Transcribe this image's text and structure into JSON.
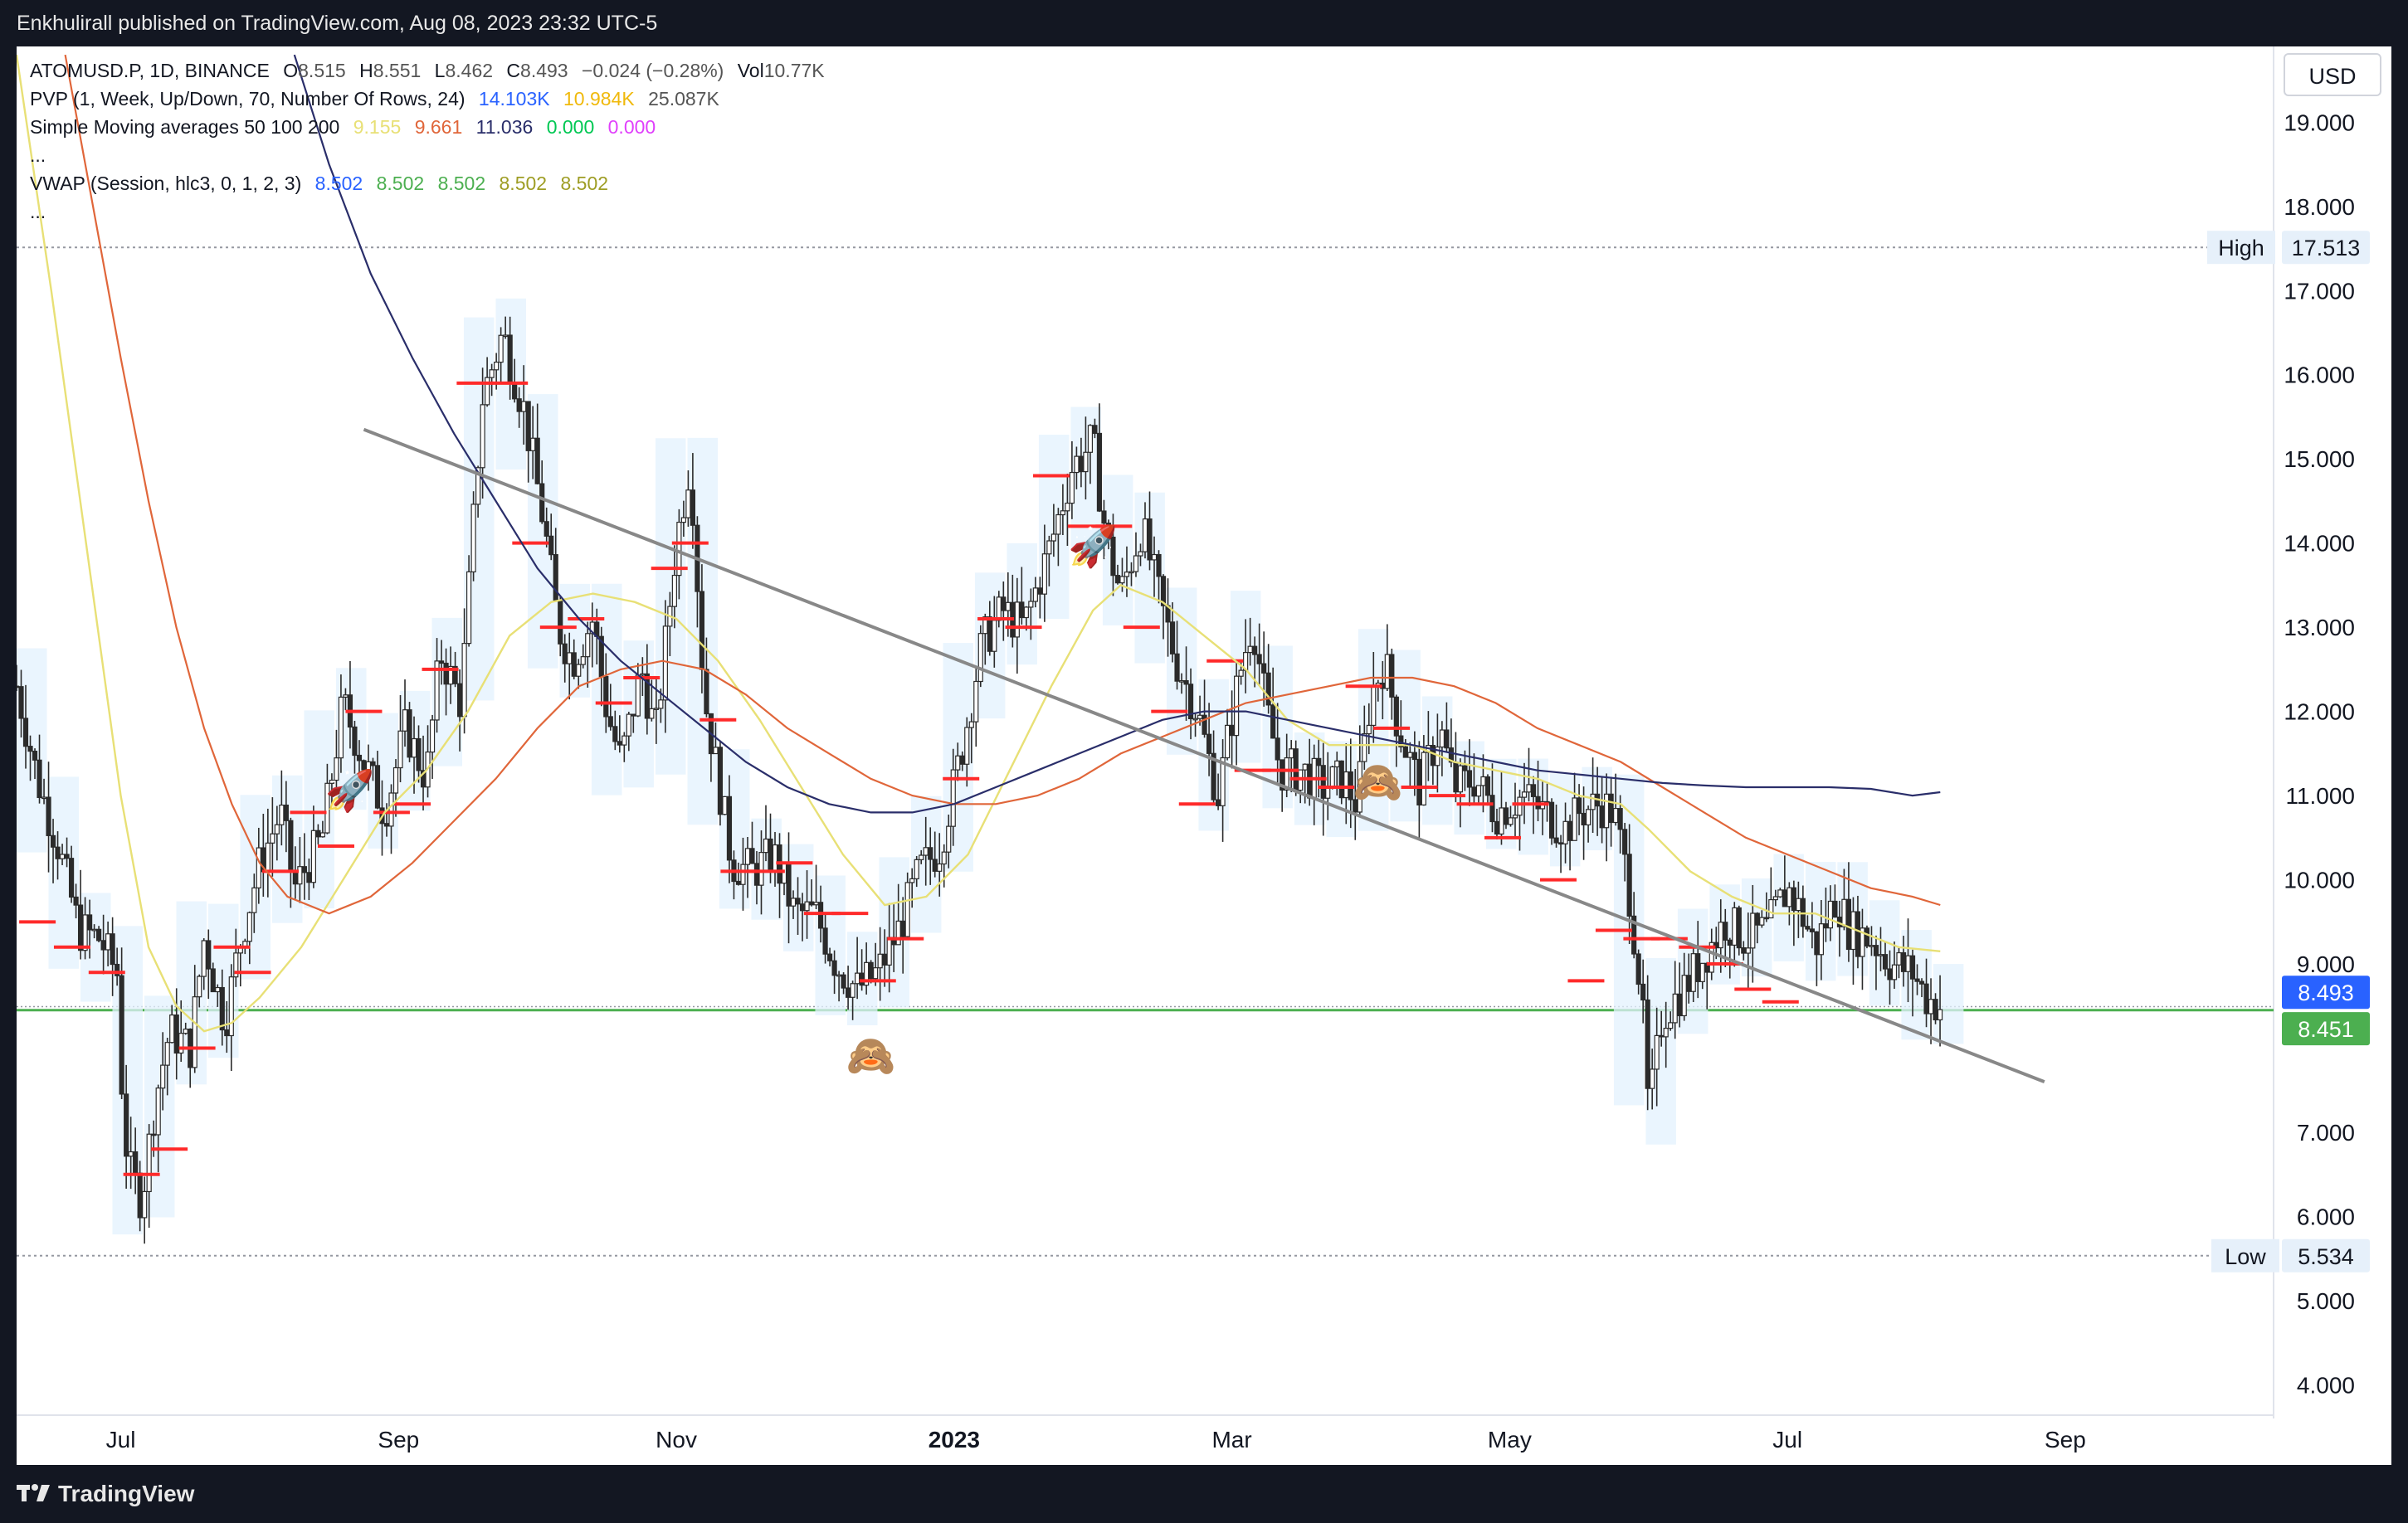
{
  "header": {
    "publish_text": "Enkhulirall published on TradingView.com, Aug 08, 2023 23:32 UTC-5"
  },
  "footer": {
    "brand": "TradingView"
  },
  "currency": "USD",
  "legend": {
    "symbol_line": {
      "symbol": "ATOMUSD.P, 1D, BINANCE",
      "o_label": "O",
      "o": "8.515",
      "h_label": "H",
      "h": "8.551",
      "l_label": "L",
      "l": "8.462",
      "c_label": "C",
      "c": "8.493",
      "change": "−0.024 (−0.28%)",
      "vol_label": "Vol",
      "vol": "10.77K"
    },
    "pvp": {
      "name": "PVP (1, Week, Up/Down, 70, Number Of Rows, 24)",
      "v1": "14.103K",
      "v2": "10.984K",
      "v3": "25.087K"
    },
    "sma": {
      "name": "Simple Moving averages 50 100 200",
      "v1": "9.155",
      "v2": "9.661",
      "v3": "11.036",
      "v4": "0.000",
      "v5": "0.000"
    },
    "ellipsis1": "...",
    "vwap": {
      "name": "VWAP (Session, hlc3, 0, 1, 2, 3)",
      "v1": "8.502",
      "v2": "8.502",
      "v3": "8.502",
      "v4": "8.502",
      "v5": "8.502"
    },
    "ellipsis2": "..."
  },
  "colors": {
    "up": "#26a69a",
    "sma50": "#e8e076",
    "sma100": "#e0663a",
    "sma200": "#2a2e6a",
    "poc": "#ff2a2a",
    "trendline": "#888888",
    "support": "#4caf50",
    "vwap_blue": "#2962ff",
    "pvp_yellow": "#f0b90b",
    "sma_green": "#00c853",
    "sma_magenta": "#e040fb"
  },
  "chart_data": {
    "type": "candlestick",
    "symbol": "ATOMUSD.P",
    "timeframe": "1D",
    "ylim": [
      3.6,
      19.9
    ],
    "y_ticks": [
      "19.000",
      "18.000",
      "17.000",
      "16.000",
      "15.000",
      "14.000",
      "13.000",
      "12.000",
      "11.000",
      "10.000",
      "9.000",
      "7.000",
      "6.000",
      "5.000",
      "4.000"
    ],
    "x_ticks": [
      "Jul",
      "Sep",
      "Nov",
      "2023",
      "Mar",
      "May",
      "Jul",
      "Sep"
    ],
    "x_tick_months": [
      0,
      2,
      4,
      6,
      8,
      10,
      12,
      14
    ],
    "x_range_months": [
      -0.75,
      15.5
    ],
    "high": {
      "label": "High",
      "value": 17.513,
      "text": "17.513"
    },
    "low": {
      "label": "Low",
      "value": 5.534,
      "text": "5.534"
    },
    "last_price": {
      "value": 8.493,
      "text": "8.493"
    },
    "support": {
      "value": 8.451,
      "text": "8.451"
    },
    "trendline": {
      "from": [
        1.75,
        15.35
      ],
      "to": [
        13.85,
        7.6
      ]
    },
    "price_path": [
      [
        -0.75,
        12.3
      ],
      [
        -0.6,
        11.2
      ],
      [
        -0.45,
        10.4
      ],
      [
        -0.3,
        9.4
      ],
      [
        -0.15,
        9.3
      ],
      [
        0.0,
        8.8
      ],
      [
        -0.05,
        8.9
      ],
      [
        0.05,
        6.6
      ],
      [
        0.15,
        6.2
      ],
      [
        0.25,
        7.4
      ],
      [
        0.35,
        8.2
      ],
      [
        0.5,
        8.0
      ],
      [
        0.6,
        9.3
      ],
      [
        0.75,
        8.3
      ],
      [
        0.85,
        9.2
      ],
      [
        1.0,
        10.2
      ],
      [
        1.15,
        10.8
      ],
      [
        1.25,
        9.9
      ],
      [
        1.45,
        10.5
      ],
      [
        1.6,
        12.1
      ],
      [
        1.75,
        11.4
      ],
      [
        1.9,
        10.8
      ],
      [
        2.05,
        11.8
      ],
      [
        2.2,
        11.2
      ],
      [
        2.3,
        12.7
      ],
      [
        2.45,
        12.1
      ],
      [
        2.6,
        15.7
      ],
      [
        2.75,
        16.5
      ],
      [
        2.9,
        15.6
      ],
      [
        3.05,
        14.2
      ],
      [
        3.15,
        13.0
      ],
      [
        3.25,
        12.6
      ],
      [
        3.4,
        13.1
      ],
      [
        3.5,
        12.0
      ],
      [
        3.6,
        11.4
      ],
      [
        3.75,
        12.5
      ],
      [
        3.85,
        11.7
      ],
      [
        4.0,
        14.0
      ],
      [
        4.1,
        15.0
      ],
      [
        4.2,
        12.2
      ],
      [
        4.3,
        11.2
      ],
      [
        4.4,
        10.2
      ],
      [
        4.55,
        10.1
      ],
      [
        4.7,
        10.3
      ],
      [
        4.85,
        9.6
      ],
      [
        5.0,
        9.6
      ],
      [
        5.15,
        9.0
      ],
      [
        5.3,
        8.7
      ],
      [
        5.45,
        8.9
      ],
      [
        5.6,
        9.4
      ],
      [
        5.75,
        10.1
      ],
      [
        5.9,
        10.4
      ],
      [
        6.05,
        11.5
      ],
      [
        6.2,
        12.8
      ],
      [
        6.35,
        13.2
      ],
      [
        6.5,
        13.0
      ],
      [
        6.7,
        14.0
      ],
      [
        6.85,
        14.9
      ],
      [
        7.0,
        15.2
      ],
      [
        7.1,
        14.0
      ],
      [
        7.2,
        13.4
      ],
      [
        7.35,
        14.2
      ],
      [
        7.5,
        13.2
      ],
      [
        7.6,
        12.6
      ],
      [
        7.75,
        12.0
      ],
      [
        7.9,
        11.0
      ],
      [
        8.05,
        12.4
      ],
      [
        8.15,
        13.1
      ],
      [
        8.25,
        12.0
      ],
      [
        8.35,
        11.3
      ],
      [
        8.5,
        11.3
      ],
      [
        8.65,
        11.1
      ],
      [
        8.8,
        11.2
      ],
      [
        8.9,
        10.9
      ],
      [
        9.0,
        12.2
      ],
      [
        9.1,
        12.6
      ],
      [
        9.2,
        11.8
      ],
      [
        9.35,
        11.1
      ],
      [
        9.5,
        11.8
      ],
      [
        9.6,
        11.1
      ],
      [
        9.75,
        11.2
      ],
      [
        9.9,
        10.8
      ],
      [
        10.1,
        11.0
      ],
      [
        10.25,
        10.8
      ],
      [
        10.4,
        10.6
      ],
      [
        10.5,
        10.8
      ],
      [
        10.65,
        10.9
      ],
      [
        10.75,
        10.8
      ],
      [
        10.85,
        10.0
      ],
      [
        10.95,
        8.6
      ],
      [
        11.0,
        7.2
      ],
      [
        11.1,
        8.4
      ],
      [
        11.25,
        8.7
      ],
      [
        11.4,
        9.1
      ],
      [
        11.55,
        9.5
      ],
      [
        11.7,
        9.3
      ],
      [
        11.85,
        9.4
      ],
      [
        12.0,
        9.9
      ],
      [
        12.1,
        9.6
      ],
      [
        12.2,
        9.2
      ],
      [
        12.35,
        9.8
      ],
      [
        12.45,
        9.4
      ],
      [
        12.6,
        9.3
      ],
      [
        12.75,
        9.0
      ],
      [
        12.9,
        8.9
      ],
      [
        13.0,
        8.6
      ],
      [
        13.1,
        8.5
      ]
    ],
    "sma50": [
      [
        -0.75,
        19.8
      ],
      [
        -0.5,
        17.0
      ],
      [
        -0.25,
        14.0
      ],
      [
        0.0,
        11.0
      ],
      [
        0.2,
        9.2
      ],
      [
        0.4,
        8.5
      ],
      [
        0.6,
        8.2
      ],
      [
        0.8,
        8.3
      ],
      [
        1.0,
        8.6
      ],
      [
        1.3,
        9.2
      ],
      [
        1.6,
        10.0
      ],
      [
        1.9,
        10.8
      ],
      [
        2.2,
        11.3
      ],
      [
        2.5,
        12.0
      ],
      [
        2.8,
        12.9
      ],
      [
        3.1,
        13.3
      ],
      [
        3.4,
        13.4
      ],
      [
        3.7,
        13.3
      ],
      [
        4.0,
        13.1
      ],
      [
        4.3,
        12.6
      ],
      [
        4.6,
        11.9
      ],
      [
        4.9,
        11.1
      ],
      [
        5.2,
        10.3
      ],
      [
        5.5,
        9.7
      ],
      [
        5.8,
        9.8
      ],
      [
        6.1,
        10.3
      ],
      [
        6.4,
        11.3
      ],
      [
        6.7,
        12.3
      ],
      [
        7.0,
        13.2
      ],
      [
        7.2,
        13.5
      ],
      [
        7.5,
        13.3
      ],
      [
        7.8,
        12.9
      ],
      [
        8.1,
        12.5
      ],
      [
        8.4,
        11.9
      ],
      [
        8.7,
        11.6
      ],
      [
        9.0,
        11.6
      ],
      [
        9.3,
        11.6
      ],
      [
        9.6,
        11.4
      ],
      [
        9.9,
        11.3
      ],
      [
        10.2,
        11.2
      ],
      [
        10.5,
        11.0
      ],
      [
        10.8,
        10.9
      ],
      [
        11.0,
        10.6
      ],
      [
        11.3,
        10.1
      ],
      [
        11.6,
        9.8
      ],
      [
        11.9,
        9.6
      ],
      [
        12.2,
        9.6
      ],
      [
        12.5,
        9.4
      ],
      [
        12.8,
        9.2
      ],
      [
        13.1,
        9.15
      ]
    ],
    "sma100": [
      [
        -0.4,
        19.8
      ],
      [
        -0.2,
        18.0
      ],
      [
        0.0,
        16.2
      ],
      [
        0.2,
        14.5
      ],
      [
        0.4,
        13.0
      ],
      [
        0.6,
        11.8
      ],
      [
        0.8,
        10.9
      ],
      [
        1.0,
        10.2
      ],
      [
        1.2,
        9.8
      ],
      [
        1.5,
        9.6
      ],
      [
        1.8,
        9.8
      ],
      [
        2.1,
        10.2
      ],
      [
        2.4,
        10.7
      ],
      [
        2.7,
        11.2
      ],
      [
        3.0,
        11.8
      ],
      [
        3.3,
        12.3
      ],
      [
        3.6,
        12.5
      ],
      [
        3.9,
        12.6
      ],
      [
        4.2,
        12.5
      ],
      [
        4.5,
        12.2
      ],
      [
        4.8,
        11.8
      ],
      [
        5.1,
        11.5
      ],
      [
        5.4,
        11.2
      ],
      [
        5.7,
        11.0
      ],
      [
        6.0,
        10.9
      ],
      [
        6.3,
        10.9
      ],
      [
        6.6,
        11.0
      ],
      [
        6.9,
        11.2
      ],
      [
        7.2,
        11.5
      ],
      [
        7.5,
        11.7
      ],
      [
        7.8,
        11.9
      ],
      [
        8.1,
        12.1
      ],
      [
        8.4,
        12.2
      ],
      [
        8.7,
        12.3
      ],
      [
        9.0,
        12.4
      ],
      [
        9.3,
        12.4
      ],
      [
        9.6,
        12.3
      ],
      [
        9.9,
        12.1
      ],
      [
        10.2,
        11.8
      ],
      [
        10.5,
        11.6
      ],
      [
        10.8,
        11.4
      ],
      [
        11.1,
        11.1
      ],
      [
        11.4,
        10.8
      ],
      [
        11.7,
        10.5
      ],
      [
        12.0,
        10.3
      ],
      [
        12.3,
        10.1
      ],
      [
        12.6,
        9.9
      ],
      [
        12.9,
        9.8
      ],
      [
        13.1,
        9.7
      ]
    ],
    "sma200": [
      [
        1.25,
        19.8
      ],
      [
        1.5,
        18.5
      ],
      [
        1.8,
        17.2
      ],
      [
        2.1,
        16.2
      ],
      [
        2.4,
        15.3
      ],
      [
        2.7,
        14.5
      ],
      [
        3.0,
        13.7
      ],
      [
        3.3,
        13.1
      ],
      [
        3.6,
        12.6
      ],
      [
        3.9,
        12.2
      ],
      [
        4.2,
        11.8
      ],
      [
        4.5,
        11.4
      ],
      [
        4.8,
        11.1
      ],
      [
        5.1,
        10.9
      ],
      [
        5.4,
        10.8
      ],
      [
        5.7,
        10.8
      ],
      [
        6.0,
        10.9
      ],
      [
        6.3,
        11.1
      ],
      [
        6.6,
        11.3
      ],
      [
        6.9,
        11.5
      ],
      [
        7.2,
        11.7
      ],
      [
        7.5,
        11.9
      ],
      [
        7.8,
        12.0
      ],
      [
        8.1,
        12.0
      ],
      [
        8.4,
        11.9
      ],
      [
        8.7,
        11.8
      ],
      [
        9.0,
        11.7
      ],
      [
        9.3,
        11.6
      ],
      [
        9.6,
        11.5
      ],
      [
        9.9,
        11.4
      ],
      [
        10.2,
        11.3
      ],
      [
        10.5,
        11.25
      ],
      [
        10.8,
        11.2
      ],
      [
        11.1,
        11.15
      ],
      [
        11.4,
        11.12
      ],
      [
        11.7,
        11.1
      ],
      [
        12.0,
        11.1
      ],
      [
        12.3,
        11.1
      ],
      [
        12.6,
        11.08
      ],
      [
        12.9,
        11.0
      ],
      [
        13.1,
        11.04
      ]
    ],
    "poc_levels": [
      [
        -0.6,
        9.5
      ],
      [
        -0.35,
        9.2
      ],
      [
        -0.1,
        8.9
      ],
      [
        0.15,
        6.5
      ],
      [
        0.35,
        6.8
      ],
      [
        0.55,
        8.0
      ],
      [
        0.8,
        9.2
      ],
      [
        0.95,
        8.9
      ],
      [
        1.15,
        10.1
      ],
      [
        1.35,
        10.8
      ],
      [
        1.55,
        10.4
      ],
      [
        1.75,
        12.0
      ],
      [
        1.95,
        10.8
      ],
      [
        2.1,
        10.9
      ],
      [
        2.3,
        12.5
      ],
      [
        2.55,
        15.9
      ],
      [
        2.8,
        15.9
      ],
      [
        2.95,
        14.0
      ],
      [
        3.15,
        13.0
      ],
      [
        3.35,
        13.1
      ],
      [
        3.55,
        12.1
      ],
      [
        3.75,
        12.4
      ],
      [
        3.95,
        13.7
      ],
      [
        4.1,
        14.0
      ],
      [
        4.3,
        11.9
      ],
      [
        4.45,
        10.1
      ],
      [
        4.65,
        10.1
      ],
      [
        4.85,
        10.2
      ],
      [
        5.05,
        9.6
      ],
      [
        5.25,
        9.6
      ],
      [
        5.45,
        8.8
      ],
      [
        5.65,
        9.3
      ],
      [
        6.05,
        11.2
      ],
      [
        6.3,
        13.1
      ],
      [
        6.5,
        13.0
      ],
      [
        6.7,
        14.8
      ],
      [
        6.95,
        14.2
      ],
      [
        7.15,
        14.2
      ],
      [
        7.35,
        13.0
      ],
      [
        7.55,
        12.0
      ],
      [
        7.75,
        10.9
      ],
      [
        7.95,
        12.6
      ],
      [
        8.15,
        11.3
      ],
      [
        8.35,
        11.3
      ],
      [
        8.55,
        11.2
      ],
      [
        8.75,
        11.1
      ],
      [
        8.95,
        12.3
      ],
      [
        9.15,
        11.8
      ],
      [
        9.35,
        11.1
      ],
      [
        9.55,
        11.0
      ],
      [
        9.75,
        10.9
      ],
      [
        9.95,
        10.5
      ],
      [
        10.15,
        10.9
      ],
      [
        10.35,
        10.0
      ],
      [
        10.55,
        8.8
      ],
      [
        10.75,
        9.4
      ],
      [
        10.95,
        9.3
      ],
      [
        11.15,
        9.3
      ],
      [
        11.35,
        9.2
      ],
      [
        11.55,
        9.0
      ],
      [
        11.75,
        8.7
      ],
      [
        11.95,
        8.55
      ]
    ],
    "markers": [
      {
        "type": "rocket",
        "x": 1.65,
        "y": 10.9
      },
      {
        "type": "monkey",
        "x": 5.4,
        "y": 7.75
      },
      {
        "type": "rocket",
        "x": 7.0,
        "y": 13.8
      },
      {
        "type": "monkey",
        "x": 9.05,
        "y": 11.0
      }
    ]
  }
}
